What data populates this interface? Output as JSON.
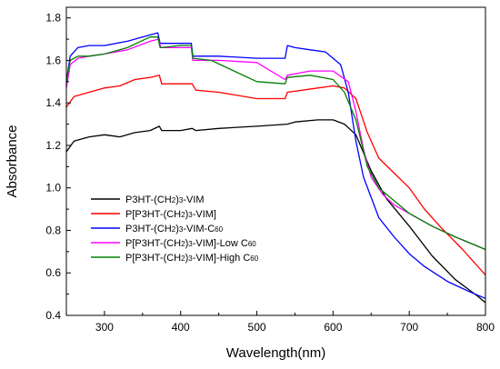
{
  "chart_data": {
    "type": "line",
    "title": "",
    "xlabel": "Wavelength(nm)",
    "ylabel": "Absorbance",
    "xlim": [
      250,
      800
    ],
    "ylim": [
      0.4,
      1.85
    ],
    "x_ticks": [
      300,
      400,
      500,
      600,
      700,
      800
    ],
    "y_ticks": [
      0.4,
      0.6,
      0.8,
      1.0,
      1.2,
      1.4,
      1.6,
      1.8
    ],
    "x_tick_labels": [
      "300",
      "400",
      "500",
      "600",
      "700",
      "800"
    ],
    "y_tick_labels": [
      "0.4",
      "0.6",
      "0.8",
      "1.0",
      "1.2",
      "1.4",
      "1.6",
      "1.8"
    ],
    "grid": false,
    "legend_position": "bottom-left",
    "series": [
      {
        "name_parts": [
          [
            "P3HT-(CH",
            false
          ],
          [
            "2",
            true
          ],
          [
            ")",
            false
          ],
          [
            "3",
            true
          ],
          [
            "-VIM",
            false
          ]
        ],
        "color": "#000000",
        "x": [
          250,
          260,
          280,
          300,
          320,
          340,
          360,
          372,
          375,
          400,
          415,
          420,
          450,
          500,
          540,
          550,
          580,
          600,
          615,
          630,
          650,
          670,
          700,
          730,
          760,
          790,
          800
        ],
        "y": [
          1.17,
          1.22,
          1.24,
          1.25,
          1.24,
          1.26,
          1.27,
          1.29,
          1.27,
          1.27,
          1.28,
          1.27,
          1.28,
          1.29,
          1.3,
          1.31,
          1.32,
          1.32,
          1.3,
          1.25,
          1.08,
          0.95,
          0.82,
          0.68,
          0.57,
          0.49,
          0.46
        ]
      },
      {
        "name_parts": [
          [
            "P[P3HT-(CH",
            false
          ],
          [
            "2",
            true
          ],
          [
            ")",
            false
          ],
          [
            "3",
            true
          ],
          [
            "-VIM]",
            false
          ]
        ],
        "color": "#ff0000",
        "x": [
          250,
          260,
          280,
          300,
          320,
          340,
          360,
          372,
          375,
          400,
          415,
          420,
          450,
          500,
          537,
          540,
          560,
          580,
          600,
          615,
          630,
          645,
          660,
          680,
          700,
          720,
          740,
          770,
          800
        ],
        "y": [
          1.38,
          1.43,
          1.45,
          1.47,
          1.48,
          1.51,
          1.52,
          1.53,
          1.49,
          1.49,
          1.49,
          1.46,
          1.45,
          1.42,
          1.42,
          1.45,
          1.46,
          1.47,
          1.48,
          1.47,
          1.42,
          1.26,
          1.14,
          1.07,
          1.0,
          0.9,
          0.82,
          0.71,
          0.59
        ]
      },
      {
        "name_parts": [
          [
            "P3HT-(CH",
            false
          ],
          [
            "2",
            true
          ],
          [
            ")",
            false
          ],
          [
            "3",
            true
          ],
          [
            "-VIM-C",
            false
          ],
          [
            "60",
            true
          ]
        ],
        "color": "#0000ff",
        "x": [
          250,
          255,
          265,
          280,
          300,
          330,
          360,
          370,
          373,
          400,
          414,
          416,
          450,
          500,
          537,
          540,
          550,
          570,
          590,
          610,
          620,
          630,
          640,
          660,
          680,
          700,
          720,
          750,
          780,
          800
        ],
        "y": [
          1.5,
          1.62,
          1.66,
          1.67,
          1.67,
          1.69,
          1.72,
          1.73,
          1.68,
          1.68,
          1.68,
          1.62,
          1.62,
          1.61,
          1.61,
          1.67,
          1.66,
          1.65,
          1.64,
          1.58,
          1.45,
          1.22,
          1.05,
          0.86,
          0.77,
          0.69,
          0.63,
          0.56,
          0.51,
          0.48
        ]
      },
      {
        "name_parts": [
          [
            "P[P3HT-(CH",
            false
          ],
          [
            "2",
            true
          ],
          [
            ")",
            false
          ],
          [
            "3",
            true
          ],
          [
            "-VIM]-Low C",
            false
          ],
          [
            "60",
            true
          ]
        ],
        "color": "#ff00ff",
        "x": [
          250,
          255,
          265,
          280,
          300,
          330,
          360,
          371,
          374,
          400,
          414,
          416,
          450,
          500,
          537,
          540,
          570,
          600,
          620,
          630,
          640,
          650,
          665,
          680,
          700,
          730,
          760,
          800
        ],
        "y": [
          1.47,
          1.58,
          1.61,
          1.62,
          1.63,
          1.65,
          1.69,
          1.7,
          1.66,
          1.66,
          1.66,
          1.6,
          1.6,
          1.59,
          1.51,
          1.53,
          1.55,
          1.55,
          1.5,
          1.36,
          1.18,
          1.05,
          0.97,
          0.92,
          0.88,
          0.82,
          0.77,
          0.71
        ]
      },
      {
        "name_parts": [
          [
            "P[P3HT-(CH",
            false
          ],
          [
            "2",
            true
          ],
          [
            ")",
            false
          ],
          [
            "3",
            true
          ],
          [
            "-VIM]-High C",
            false
          ],
          [
            "60",
            true
          ]
        ],
        "color": "#008000",
        "x": [
          250,
          255,
          265,
          280,
          300,
          330,
          360,
          370,
          373,
          400,
          414,
          416,
          440,
          470,
          500,
          537,
          540,
          570,
          600,
          615,
          630,
          645,
          660,
          680,
          700,
          730,
          760,
          800
        ],
        "y": [
          1.5,
          1.6,
          1.62,
          1.62,
          1.63,
          1.66,
          1.71,
          1.71,
          1.66,
          1.67,
          1.67,
          1.61,
          1.6,
          1.55,
          1.5,
          1.49,
          1.52,
          1.53,
          1.51,
          1.45,
          1.32,
          1.1,
          1.0,
          0.94,
          0.88,
          0.82,
          0.77,
          0.71
        ]
      }
    ]
  }
}
